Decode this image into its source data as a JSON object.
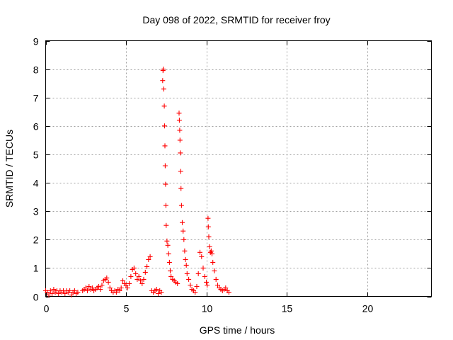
{
  "chart_data": {
    "type": "scatter",
    "title": "Day 098 of 2022, SRMTID for receiver froy",
    "xlabel": "GPS time / hours",
    "ylabel": "SRMTID / TECUs",
    "xlim": [
      0,
      24
    ],
    "ylim": [
      0,
      9
    ],
    "xticks": [
      0,
      5,
      10,
      15,
      20
    ],
    "yticks": [
      0,
      1,
      2,
      3,
      4,
      5,
      6,
      7,
      8,
      9
    ],
    "grid": true,
    "marker": "+",
    "color": "#ff0000",
    "series": [
      {
        "name": "SRMTID",
        "x": [
          0.0,
          0.1,
          0.2,
          0.3,
          0.4,
          0.5,
          0.6,
          0.7,
          0.8,
          0.9,
          1.0,
          1.1,
          1.2,
          1.3,
          1.4,
          1.5,
          1.6,
          1.7,
          1.8,
          1.9,
          2.0,
          2.3,
          2.4,
          2.5,
          2.6,
          2.7,
          2.8,
          2.9,
          3.0,
          3.1,
          3.2,
          3.3,
          3.4,
          3.5,
          3.6,
          3.7,
          3.8,
          3.9,
          4.0,
          4.1,
          4.2,
          4.3,
          4.4,
          4.5,
          4.6,
          4.7,
          4.8,
          4.9,
          5.0,
          5.1,
          5.2,
          5.3,
          5.4,
          5.5,
          5.6,
          5.7,
          5.8,
          5.9,
          6.0,
          6.1,
          6.2,
          6.3,
          6.4,
          6.5,
          6.6,
          6.7,
          6.8,
          6.9,
          7.0,
          7.1,
          7.2,
          7.28,
          7.3,
          7.32,
          7.35,
          7.38,
          7.4,
          7.42,
          7.44,
          7.46,
          7.48,
          7.5,
          7.55,
          7.6,
          7.65,
          7.7,
          7.75,
          7.8,
          7.9,
          8.0,
          8.1,
          8.2,
          8.3,
          8.32,
          8.34,
          8.36,
          8.38,
          8.4,
          8.42,
          8.45,
          8.5,
          8.55,
          8.6,
          8.65,
          8.7,
          8.75,
          8.8,
          8.9,
          9.0,
          9.1,
          9.2,
          9.3,
          9.4,
          9.5,
          9.6,
          9.7,
          9.8,
          9.9,
          10.0,
          10.05,
          10.1,
          10.12,
          10.15,
          10.2,
          10.25,
          10.3,
          10.35,
          10.4,
          10.5,
          10.6,
          10.7,
          10.8,
          10.9,
          11.0,
          11.1,
          11.2,
          11.3,
          11.4
        ],
        "y": [
          0.2,
          0.15,
          0.05,
          0.2,
          0.1,
          0.25,
          0.15,
          0.2,
          0.1,
          0.2,
          0.15,
          0.2,
          0.1,
          0.2,
          0.15,
          0.2,
          0.05,
          0.15,
          0.2,
          0.1,
          0.15,
          0.2,
          0.25,
          0.3,
          0.2,
          0.35,
          0.25,
          0.3,
          0.2,
          0.25,
          0.3,
          0.35,
          0.25,
          0.4,
          0.55,
          0.6,
          0.65,
          0.5,
          0.3,
          0.2,
          0.15,
          0.2,
          0.15,
          0.25,
          0.2,
          0.3,
          0.55,
          0.45,
          0.4,
          0.3,
          0.45,
          0.7,
          0.95,
          1.0,
          0.8,
          0.6,
          0.7,
          0.55,
          0.45,
          0.6,
          0.85,
          1.05,
          1.3,
          1.4,
          0.2,
          0.15,
          0.2,
          0.25,
          0.1,
          0.2,
          0.15,
          7.6,
          7.95,
          8.0,
          7.3,
          6.7,
          6.0,
          5.3,
          4.6,
          3.95,
          3.2,
          2.5,
          1.95,
          1.8,
          1.5,
          1.2,
          0.9,
          0.7,
          0.6,
          0.55,
          0.5,
          0.45,
          6.45,
          6.2,
          5.85,
          5.5,
          5.05,
          4.4,
          3.8,
          3.2,
          2.6,
          2.3,
          2.0,
          1.6,
          1.3,
          1.1,
          0.8,
          0.6,
          0.4,
          0.25,
          0.2,
          0.15,
          0.35,
          0.8,
          1.55,
          1.4,
          1.0,
          0.7,
          0.5,
          0.4,
          2.75,
          2.45,
          2.1,
          1.75,
          1.55,
          1.6,
          1.5,
          1.2,
          0.9,
          0.6,
          0.4,
          0.3,
          0.25,
          0.2,
          0.25,
          0.3,
          0.2,
          0.15
        ]
      }
    ]
  }
}
